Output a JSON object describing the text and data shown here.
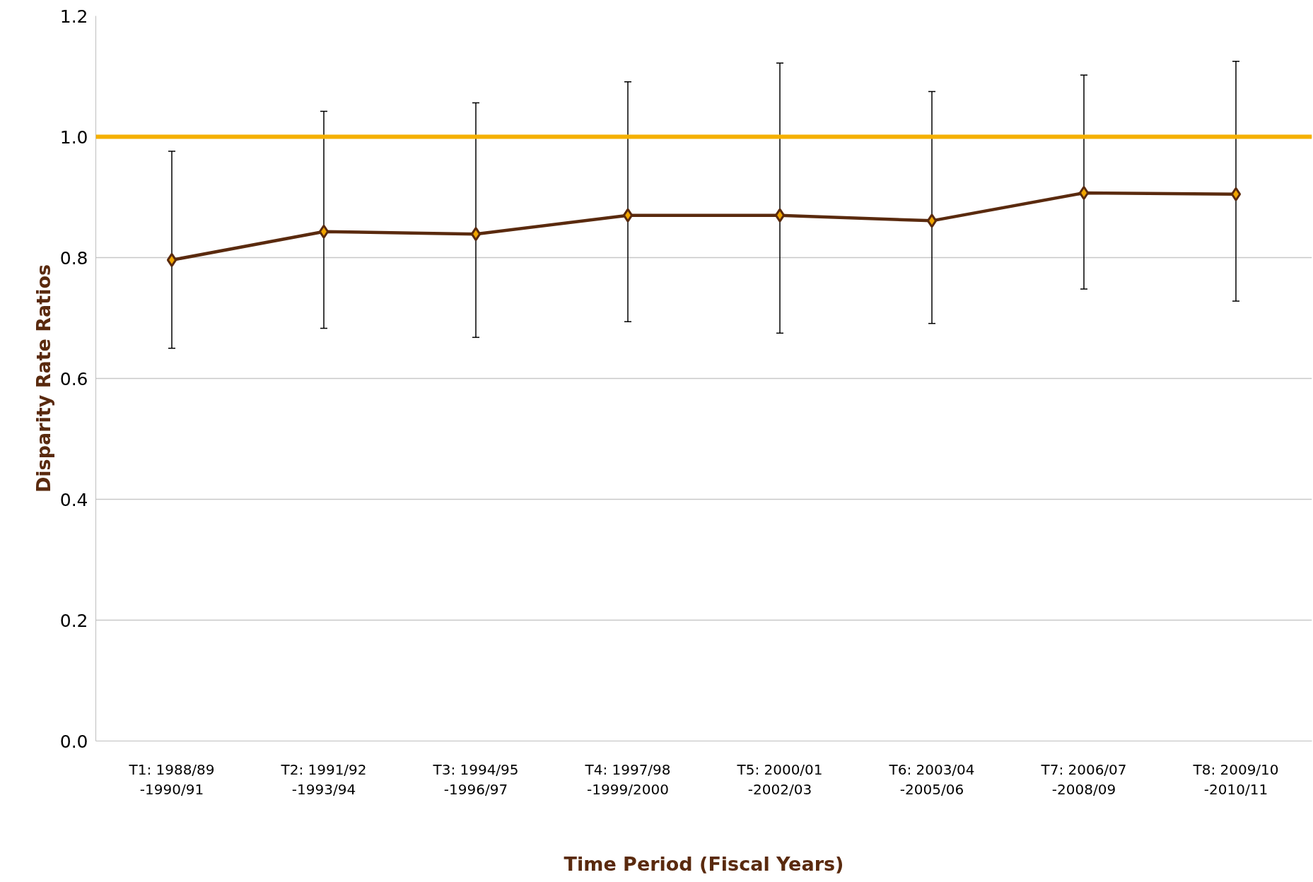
{
  "chart_data": {
    "type": "line",
    "xlabel": "Time Period (Fiscal Years)",
    "ylabel": "Disparity Rate Ratios",
    "categories": [
      "T1: 1988/89\n-1990/91",
      "T2: 1991/92\n-1993/94",
      "T3: 1994/95\n-1996/97",
      "T4: 1997/98\n-1999/2000",
      "T5: 2000/01\n-2002/03",
      "T6: 2003/04\n-2005/06",
      "T7: 2006/07\n-2008/09",
      "T8: 2009/10\n-2010/11"
    ],
    "series": [
      {
        "color": "#5a2a0e",
        "values": [
          0.796,
          0.843,
          0.839,
          0.87,
          0.87,
          0.861,
          0.907,
          0.905
        ],
        "errors": [
          [
            0.65,
            0.976
          ],
          [
            0.683,
            1.042
          ],
          [
            0.668,
            1.056
          ],
          [
            0.694,
            1.091
          ],
          [
            0.675,
            1.122
          ],
          [
            0.691,
            1.075
          ],
          [
            0.748,
            1.102
          ],
          [
            0.728,
            1.125
          ]
        ]
      }
    ],
    "ylim": [
      0,
      1.2
    ],
    "yticks": [
      {
        "value": 0,
        "label": "0.0"
      },
      0.2,
      0.4,
      0.6,
      0.8,
      {
        "value": 1.0,
        "label": "1.0"
      },
      1.2
    ],
    "ref_lines": [
      {
        "axis": "y",
        "value": 1.0,
        "label": null,
        "color": "#f5b000"
      }
    ],
    "grid": "y",
    "marker": "diamond",
    "line_style": "solid"
  }
}
